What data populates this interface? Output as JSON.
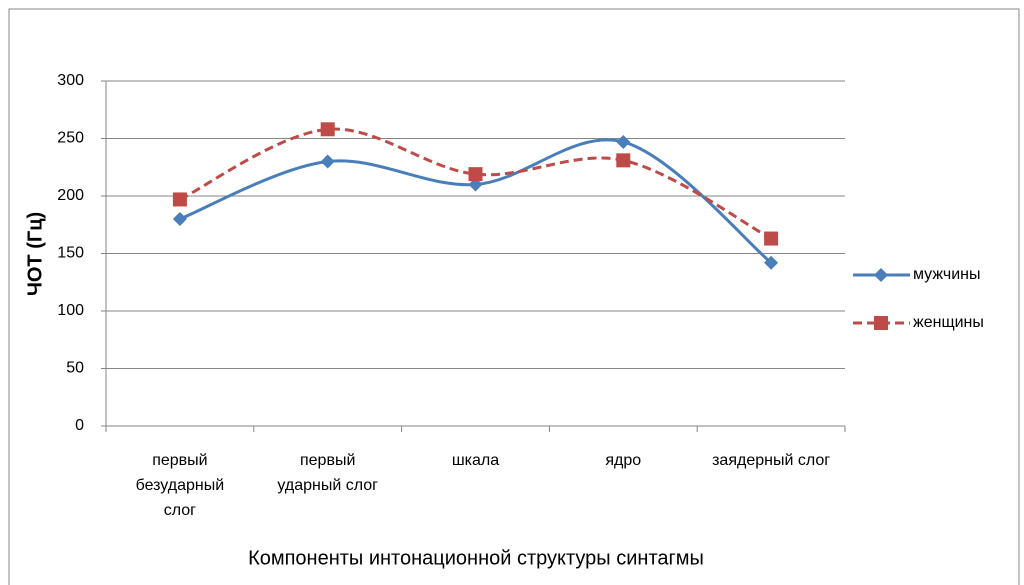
{
  "chart_data": {
    "type": "line",
    "y_label": "ЧОТ (Гц)",
    "x_label": "Компоненты интонационной структуры синтагмы",
    "categories": [
      "первый безударный слог",
      "первый ударный слог",
      "шкала",
      "ядро",
      "заядерный слог"
    ],
    "series": [
      {
        "name": "мужчины",
        "color": "#4a7ebb",
        "marker": "diamond",
        "dash": false,
        "values": [
          180,
          230,
          210,
          247,
          142
        ]
      },
      {
        "name": "женщины",
        "color": "#be4b48",
        "marker": "square",
        "dash": true,
        "values": [
          197,
          258,
          219,
          231,
          163
        ]
      }
    ],
    "ylim": [
      0,
      300
    ],
    "yticks": [
      0,
      50,
      100,
      150,
      200,
      250,
      300
    ],
    "grid": true,
    "smooth": true,
    "legend": "right"
  }
}
